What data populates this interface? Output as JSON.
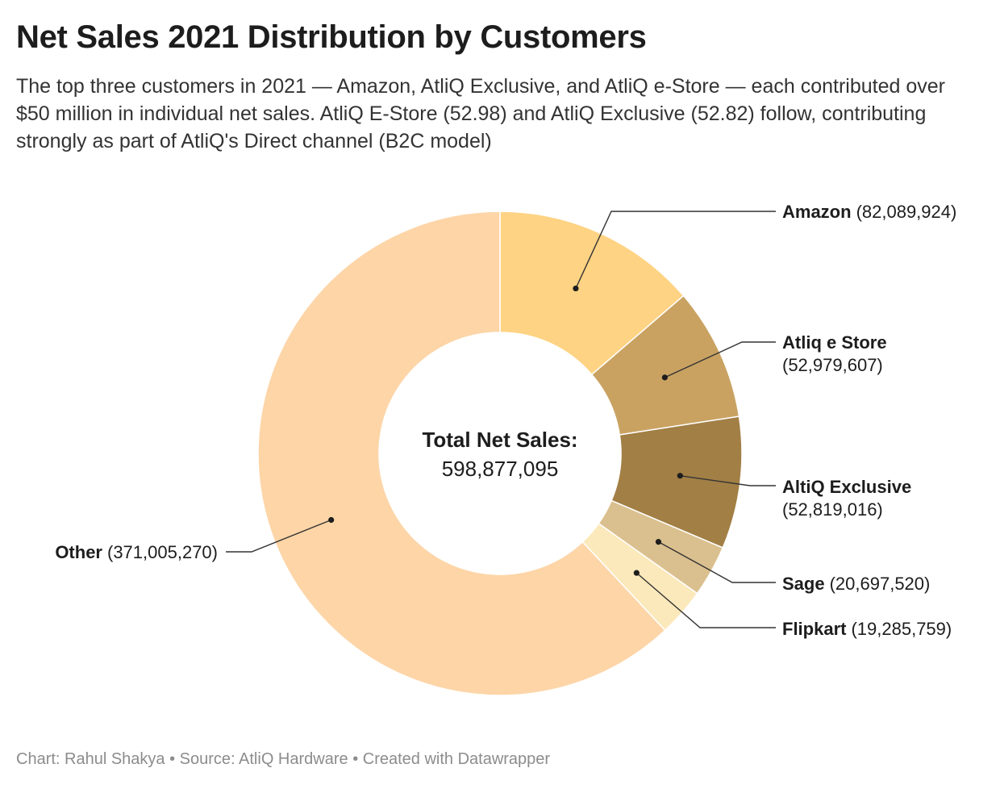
{
  "title": "Net Sales 2021 Distribution by Customers",
  "subtitle": "The top three customers in 2021 — Amazon, AtliQ Exclusive, and AtliQ e-Store — each contributed over $50 million in individual net sales. AtliQ E-Store (52.98) and AtliQ Exclusive (52.82) follow, contributing strongly as part of AtliQ's Direct channel (B2C model)",
  "footer": "Chart: Rahul Shakya • Source: AtliQ Hardware • Created with Datawrapper",
  "chart_data": {
    "type": "pie",
    "donut": true,
    "center_label": {
      "title": "Total Net Sales:",
      "value": "598,877,095"
    },
    "slices": [
      {
        "name": "Amazon",
        "value": 82089924,
        "value_label": "(82,089,924)",
        "color": "#fed383"
      },
      {
        "name": "Atliq e Store",
        "value": 52979607,
        "value_label": "(52,979,607)",
        "color": "#c9a262"
      },
      {
        "name": "AltiQ Exclusive",
        "value": 52819016,
        "value_label": "(52,819,016)",
        "color": "#a27f45"
      },
      {
        "name": "Sage",
        "value": 20697520,
        "value_label": "(20,697,520)",
        "color": "#dbc08f"
      },
      {
        "name": "Flipkart",
        "value": 19285759,
        "value_label": "(19,285,759)",
        "color": "#fbe9bb"
      },
      {
        "name": "Other",
        "value": 371005270,
        "value_label": "(371,005,270)",
        "color": "#fdd5a7"
      }
    ]
  }
}
